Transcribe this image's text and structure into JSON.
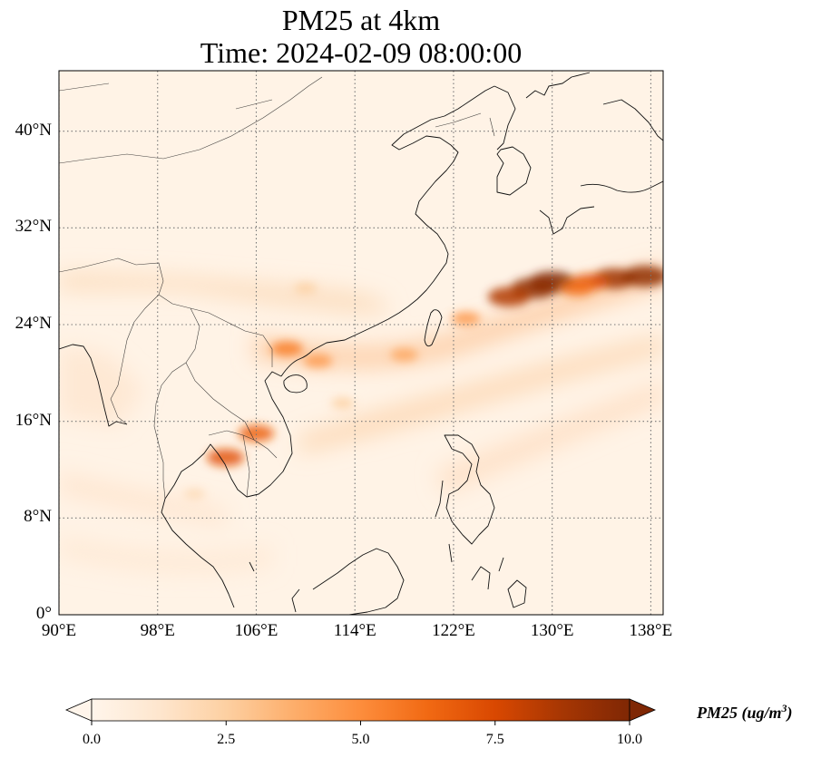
{
  "title_line1": "PM25 at 4km",
  "title_line2": "Time: 2024-02-09 08:00:00",
  "map": {
    "lon_range": [
      90,
      139
    ],
    "lat_range": [
      0,
      45
    ],
    "lon_ticks": [
      90,
      98,
      106,
      114,
      122,
      130,
      138
    ],
    "lat_ticks": [
      0,
      8,
      16,
      24,
      32,
      40
    ],
    "lon_tick_labels": [
      "90°E",
      "98°E",
      "106°E",
      "114°E",
      "122°E",
      "130°E",
      "138°E"
    ],
    "lat_tick_labels": [
      "0°",
      "8°N",
      "16°N",
      "24°N",
      "32°N",
      "40°N"
    ],
    "gridlines": "dotted",
    "plumes": [
      {
        "lon": 130.0,
        "lat": 27.5,
        "value": 10.0
      },
      {
        "lon": 128.5,
        "lat": 27.0,
        "value": 9.5
      },
      {
        "lon": 126.5,
        "lat": 26.3,
        "value": 8.5
      },
      {
        "lon": 135.0,
        "lat": 27.8,
        "value": 9.0
      },
      {
        "lon": 137.5,
        "lat": 28.0,
        "value": 9.5
      },
      {
        "lon": 133.0,
        "lat": 27.5,
        "value": 7.0
      },
      {
        "lon": 132.0,
        "lat": 27.0,
        "value": 6.0
      },
      {
        "lon": 123.0,
        "lat": 24.5,
        "value": 4.5
      },
      {
        "lon": 118.0,
        "lat": 21.5,
        "value": 4.0
      },
      {
        "lon": 108.5,
        "lat": 22.0,
        "value": 5.5
      },
      {
        "lon": 111.0,
        "lat": 21.0,
        "value": 4.5
      },
      {
        "lon": 106.0,
        "lat": 15.0,
        "value": 6.5
      },
      {
        "lon": 103.5,
        "lat": 13.0,
        "value": 7.0
      },
      {
        "lon": 110.0,
        "lat": 27.0,
        "value": 2.5
      },
      {
        "lon": 101.0,
        "lat": 10.0,
        "value": 2.0
      },
      {
        "lon": 113.0,
        "lat": 17.5,
        "value": 2.5
      }
    ]
  },
  "colorbar": {
    "colormap": [
      "#fff5eb",
      "#fee6ce",
      "#fdd0a2",
      "#fdae6b",
      "#fd8d3c",
      "#f16913",
      "#d94801",
      "#a63603",
      "#7f2704"
    ],
    "min": 0.0,
    "max": 10.0,
    "ticks": [
      0.0,
      2.5,
      5.0,
      7.5,
      10.0
    ],
    "tick_labels": [
      "0.0",
      "2.5",
      "5.0",
      "7.5",
      "10.0"
    ],
    "extend": "both",
    "label_text": "PM25 (ug/m",
    "label_sup": "3",
    "label_close": ")"
  }
}
